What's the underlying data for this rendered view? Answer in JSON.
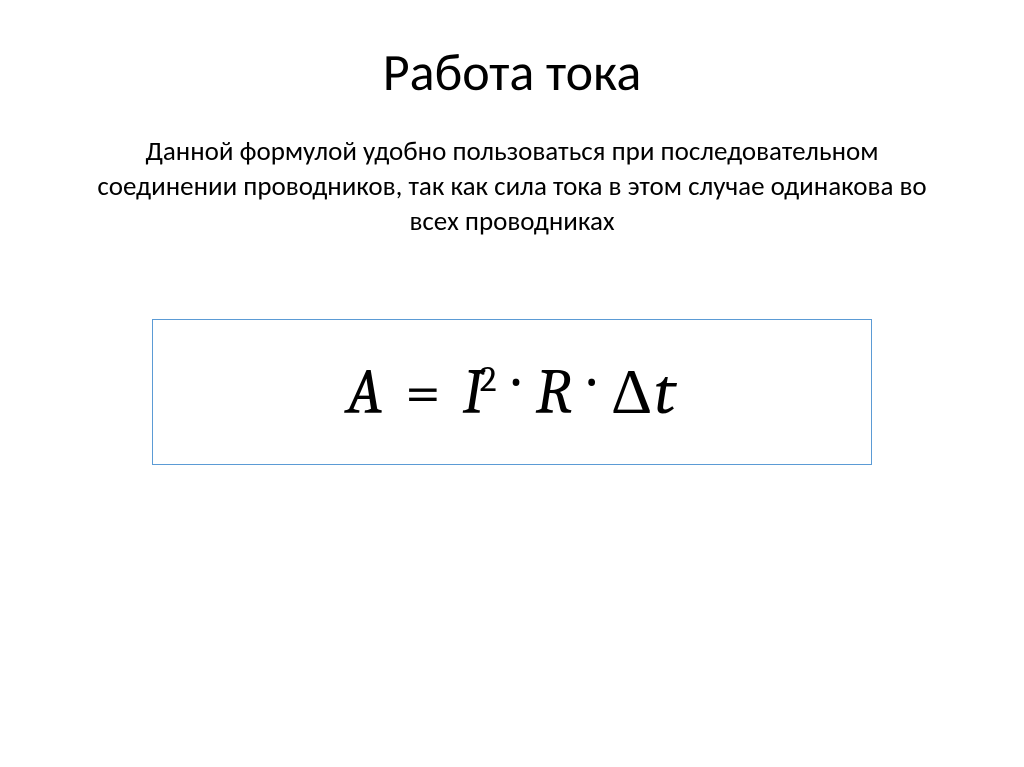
{
  "slide": {
    "title": "Работа тока",
    "description": "Данной формулой удобно пользоваться при последовательном соединении проводников, так как сила тока в этом случае одинакова во всех проводниках",
    "formula": {
      "var_A": "A",
      "equals": "=",
      "var_I": "I",
      "exponent": "2",
      "dot": "·",
      "var_R": "R",
      "delta": "Δ",
      "var_t": "t"
    },
    "styling": {
      "background_color": "#ffffff",
      "title_fontsize": 52,
      "title_color": "#000000",
      "description_fontsize": 27,
      "description_color": "#000000",
      "formula_fontsize": 64,
      "formula_color": "#000000",
      "formula_box_border_color": "#5b9bd5",
      "formula_box_border_width": 1
    }
  }
}
